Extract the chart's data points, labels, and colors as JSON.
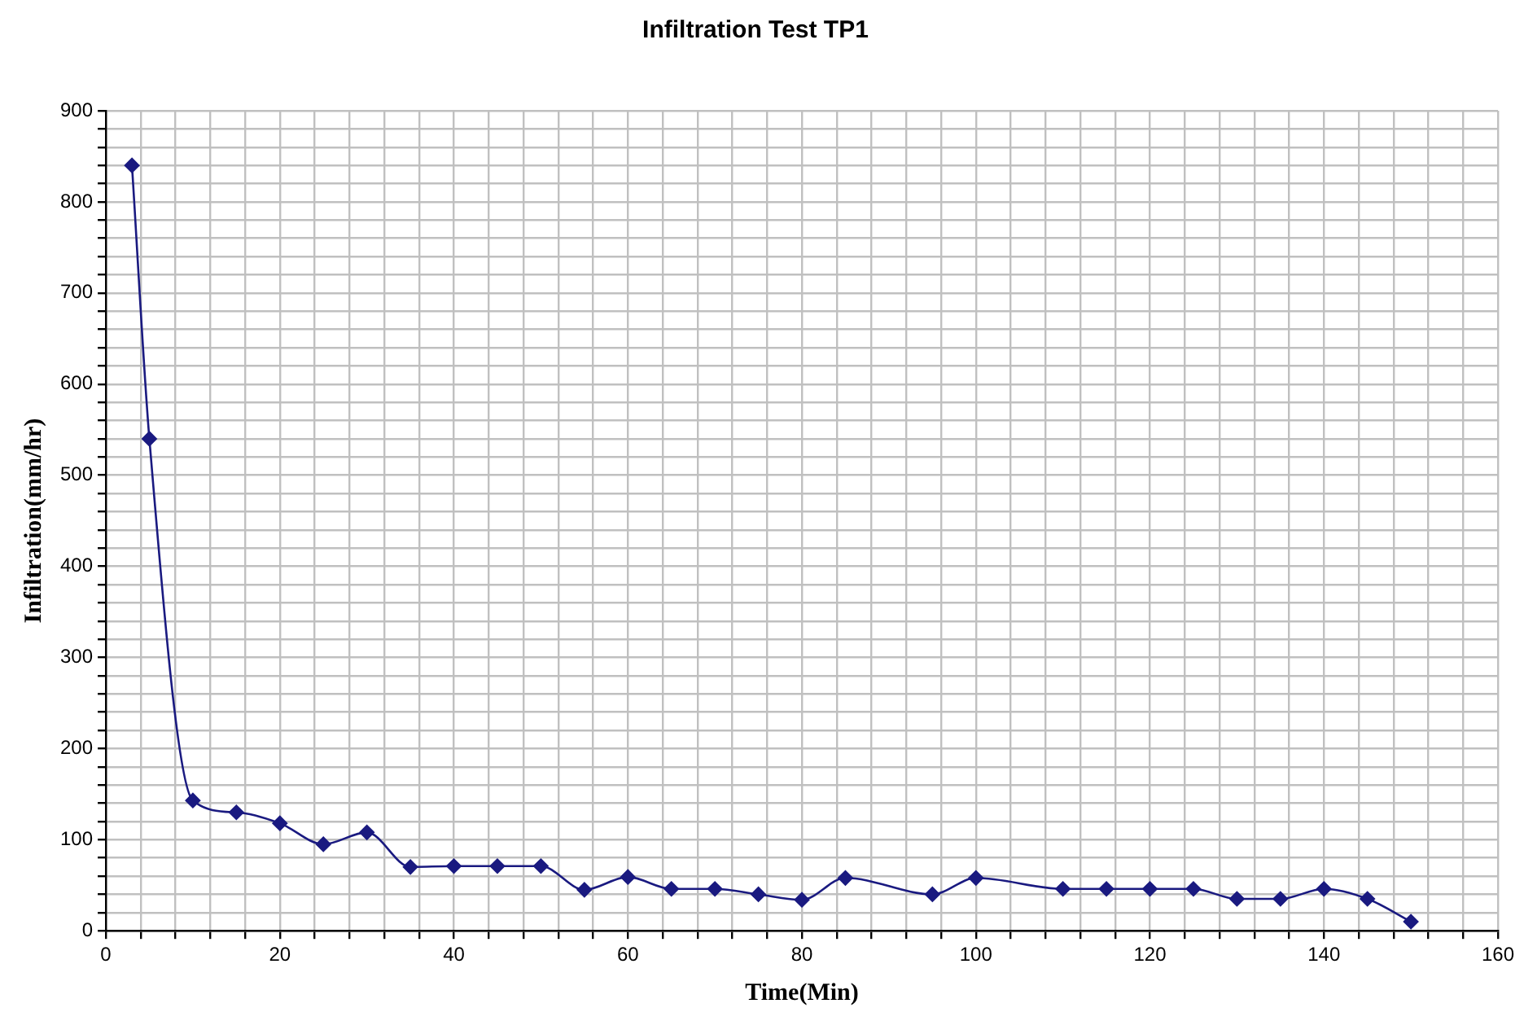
{
  "chart_data": {
    "type": "line",
    "title": "Infiltration Test TP1",
    "xlabel": "Time(Min)",
    "ylabel": "Infiltration(mm/hr)",
    "x": [
      3,
      5,
      10,
      15,
      20,
      25,
      30,
      35,
      40,
      45,
      50,
      55,
      60,
      65,
      70,
      75,
      80,
      85,
      95,
      100,
      110,
      115,
      120,
      125,
      130,
      135,
      140,
      145,
      150
    ],
    "series": [
      {
        "color": "#1a1a80",
        "values": [
          840,
          540,
          143,
          130,
          118,
          95,
          108,
          70,
          71,
          71,
          71,
          45,
          59,
          46,
          46,
          40,
          34,
          58,
          40,
          58,
          46,
          46,
          46,
          46,
          35,
          35,
          46,
          35,
          10
        ]
      }
    ],
    "xlim": [
      0,
      160
    ],
    "ylim": [
      0,
      900
    ],
    "xticks": [
      0,
      {
        "value": 4,
        "label": null
      },
      {
        "value": 8,
        "label": null
      },
      {
        "value": 12,
        "label": null
      },
      {
        "value": 16,
        "label": null
      },
      20,
      {
        "value": 24,
        "label": null
      },
      {
        "value": 28,
        "label": null
      },
      {
        "value": 32,
        "label": null
      },
      {
        "value": 36,
        "label": null
      },
      40,
      {
        "value": 44,
        "label": null
      },
      {
        "value": 48,
        "label": null
      },
      {
        "value": 52,
        "label": null
      },
      {
        "value": 56,
        "label": null
      },
      60,
      {
        "value": 64,
        "label": null
      },
      {
        "value": 68,
        "label": null
      },
      {
        "value": 72,
        "label": null
      },
      {
        "value": 76,
        "label": null
      },
      80,
      {
        "value": 84,
        "label": null
      },
      {
        "value": 88,
        "label": null
      },
      {
        "value": 92,
        "label": null
      },
      {
        "value": 96,
        "label": null
      },
      100,
      {
        "value": 104,
        "label": null
      },
      {
        "value": 108,
        "label": null
      },
      {
        "value": 112,
        "label": null
      },
      {
        "value": 116,
        "label": null
      },
      120,
      {
        "value": 124,
        "label": null
      },
      {
        "value": 128,
        "label": null
      },
      {
        "value": 132,
        "label": null
      },
      {
        "value": 136,
        "label": null
      },
      140,
      {
        "value": 144,
        "label": null
      },
      {
        "value": 148,
        "label": null
      },
      {
        "value": 152,
        "label": null
      },
      {
        "value": 156,
        "label": null
      },
      160
    ],
    "yticks": [
      0,
      {
        "value": 20,
        "label": null
      },
      {
        "value": 40,
        "label": null
      },
      {
        "value": 60,
        "label": null
      },
      {
        "value": 80,
        "label": null
      },
      100,
      {
        "value": 120,
        "label": null
      },
      {
        "value": 140,
        "label": null
      },
      {
        "value": 160,
        "label": null
      },
      {
        "value": 180,
        "label": null
      },
      200,
      {
        "value": 220,
        "label": null
      },
      {
        "value": 240,
        "label": null
      },
      {
        "value": 260,
        "label": null
      },
      {
        "value": 280,
        "label": null
      },
      300,
      {
        "value": 320,
        "label": null
      },
      {
        "value": 340,
        "label": null
      },
      {
        "value": 360,
        "label": null
      },
      {
        "value": 380,
        "label": null
      },
      400,
      {
        "value": 420,
        "label": null
      },
      {
        "value": 440,
        "label": null
      },
      {
        "value": 460,
        "label": null
      },
      {
        "value": 480,
        "label": null
      },
      500,
      {
        "value": 520,
        "label": null
      },
      {
        "value": 540,
        "label": null
      },
      {
        "value": 560,
        "label": null
      },
      {
        "value": 580,
        "label": null
      },
      600,
      {
        "value": 620,
        "label": null
      },
      {
        "value": 640,
        "label": null
      },
      {
        "value": 660,
        "label": null
      },
      {
        "value": 680,
        "label": null
      },
      700,
      {
        "value": 720,
        "label": null
      },
      {
        "value": 740,
        "label": null
      },
      {
        "value": 760,
        "label": null
      },
      {
        "value": 780,
        "label": null
      },
      800,
      {
        "value": 820,
        "label": null
      },
      {
        "value": 840,
        "label": null
      },
      {
        "value": 860,
        "label": null
      },
      {
        "value": 880,
        "label": null
      },
      900
    ],
    "grid": true,
    "legend": false,
    "marker": "diamond",
    "line_style": "solid"
  }
}
